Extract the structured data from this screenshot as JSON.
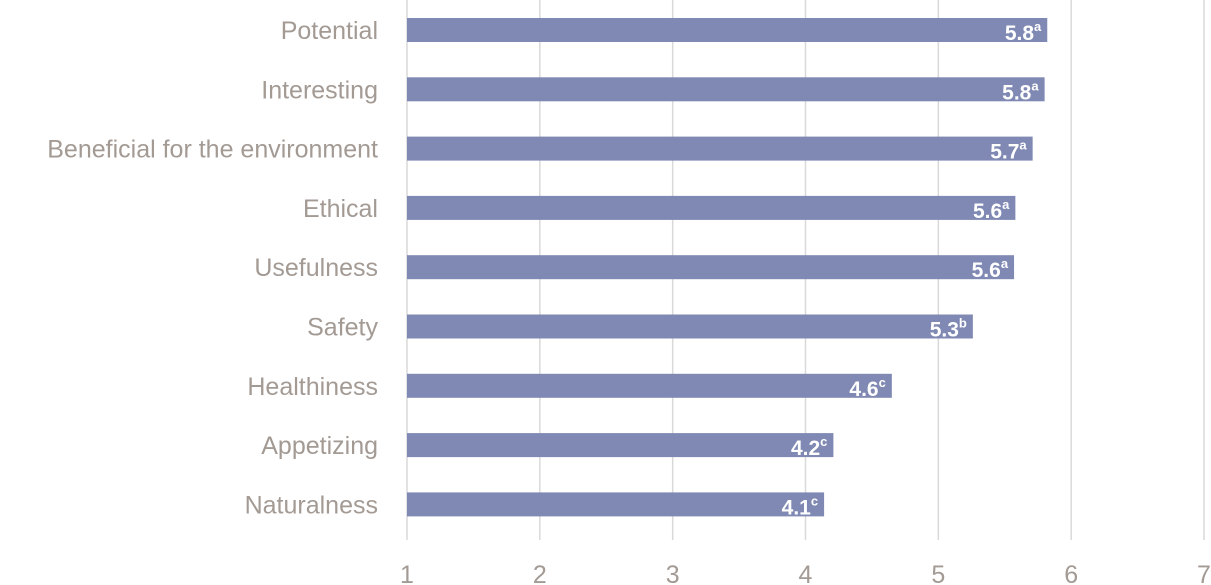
{
  "chart_data": {
    "type": "bar",
    "orientation": "horizontal",
    "categories": [
      "Potential",
      "Interesting",
      "Beneficial for the environment",
      "Ethical",
      "Usefulness",
      "Safety",
      "Healthiness",
      "Appetizing",
      "Naturalness"
    ],
    "values": [
      5.82,
      5.8,
      5.71,
      5.58,
      5.57,
      5.26,
      4.65,
      4.21,
      4.14
    ],
    "data_labels": [
      "5.8",
      "5.8",
      "5.7",
      "5.6",
      "5.6",
      "5.3",
      "4.6",
      "4.2",
      "4.1"
    ],
    "data_label_superscripts": [
      "a",
      "a",
      "a",
      "a",
      "a",
      "b",
      "c",
      "c",
      "c"
    ],
    "xlim": [
      1,
      7
    ],
    "x_ticks": [
      "1",
      "2",
      "3",
      "4",
      "5",
      "6",
      "7"
    ],
    "grid": "vertical",
    "bar_color": "#7f89b3",
    "label_color": "#a39a94",
    "gridline_color": "#d9d9d9"
  }
}
